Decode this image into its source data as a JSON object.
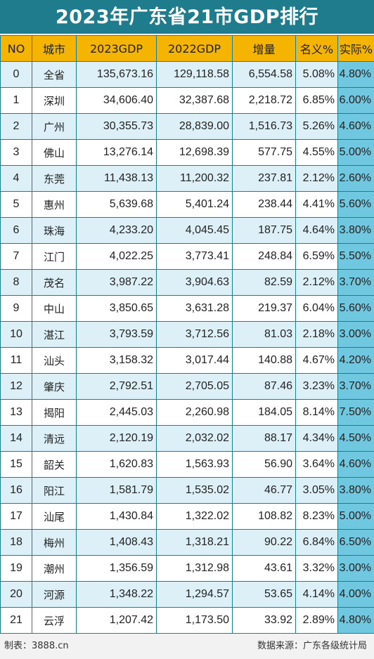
{
  "title": "2023年广东省21市GDP排行",
  "headers": [
    "NO",
    "城市",
    "2023GDP",
    "2022GDP",
    "增量",
    "名义%",
    "实际%"
  ],
  "rows": [
    [
      "0",
      "全省",
      "135,673.16",
      "129,118.58",
      "6,554.58",
      "5.08%",
      "4.80%"
    ],
    [
      "1",
      "深圳",
      "34,606.40",
      "32,387.68",
      "2,218.72",
      "6.85%",
      "6.00%"
    ],
    [
      "2",
      "广州",
      "30,355.73",
      "28,839.00",
      "1,516.73",
      "5.26%",
      "4.60%"
    ],
    [
      "3",
      "佛山",
      "13,276.14",
      "12,698.39",
      "577.75",
      "4.55%",
      "5.00%"
    ],
    [
      "4",
      "东莞",
      "11,438.13",
      "11,200.32",
      "237.81",
      "2.12%",
      "2.60%"
    ],
    [
      "5",
      "惠州",
      "5,639.68",
      "5,401.24",
      "238.44",
      "4.41%",
      "5.60%"
    ],
    [
      "6",
      "珠海",
      "4,233.20",
      "4,045.45",
      "187.75",
      "4.64%",
      "3.80%"
    ],
    [
      "7",
      "江门",
      "4,022.25",
      "3,773.41",
      "248.84",
      "6.59%",
      "5.50%"
    ],
    [
      "8",
      "茂名",
      "3,987.22",
      "3,904.63",
      "82.59",
      "2.12%",
      "3.70%"
    ],
    [
      "9",
      "中山",
      "3,850.65",
      "3,631.28",
      "219.37",
      "6.04%",
      "5.60%"
    ],
    [
      "10",
      "湛江",
      "3,793.59",
      "3,712.56",
      "81.03",
      "2.18%",
      "3.00%"
    ],
    [
      "11",
      "汕头",
      "3,158.32",
      "3,017.44",
      "140.88",
      "4.67%",
      "4.20%"
    ],
    [
      "12",
      "肇庆",
      "2,792.51",
      "2,705.05",
      "87.46",
      "3.23%",
      "3.70%"
    ],
    [
      "13",
      "揭阳",
      "2,445.03",
      "2,260.98",
      "184.05",
      "8.14%",
      "7.50%"
    ],
    [
      "14",
      "清远",
      "2,120.19",
      "2,032.02",
      "88.17",
      "4.34%",
      "4.50%"
    ],
    [
      "15",
      "韶关",
      "1,620.83",
      "1,563.93",
      "56.90",
      "3.64%",
      "4.60%"
    ],
    [
      "16",
      "阳江",
      "1,581.79",
      "1,535.02",
      "46.77",
      "3.05%",
      "3.80%"
    ],
    [
      "17",
      "汕尾",
      "1,430.84",
      "1,322.02",
      "108.82",
      "8.23%",
      "5.00%"
    ],
    [
      "18",
      "梅州",
      "1,408.43",
      "1,318.21",
      "90.22",
      "6.84%",
      "6.50%"
    ],
    [
      "19",
      "潮州",
      "1,356.59",
      "1,312.98",
      "43.61",
      "3.32%",
      "3.00%"
    ],
    [
      "20",
      "河源",
      "1,348.22",
      "1,294.57",
      "53.65",
      "4.14%",
      "4.00%"
    ],
    [
      "21",
      "云浮",
      "1,207.42",
      "1,173.50",
      "33.92",
      "2.89%",
      "4.80%"
    ]
  ],
  "footer": {
    "left": "制表：3888.cn",
    "right": "数据来源：广东各级统计局"
  }
}
